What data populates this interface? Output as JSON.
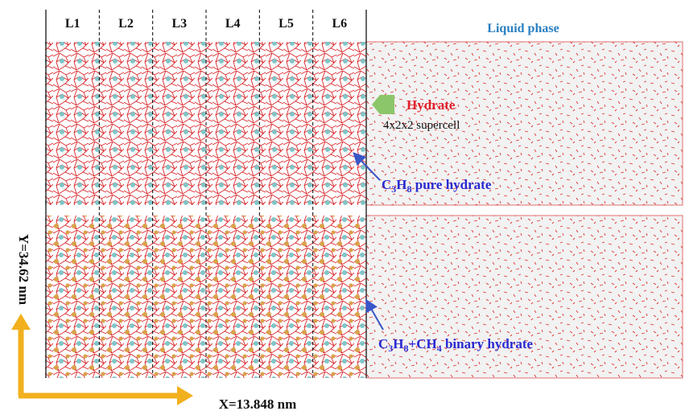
{
  "layers": [
    "L1",
    "L2",
    "L3",
    "L4",
    "L5",
    "L6"
  ],
  "liquid_label": "Liquid phase",
  "hydrate_label": "Hydrate",
  "supercell_label": "4x2x2 supercell",
  "pure_label": [
    {
      "text": "C"
    },
    {
      "text": "3",
      "sub": true
    },
    {
      "text": "H"
    },
    {
      "text": "8",
      "sub": true
    },
    {
      "text": " pure hydrate"
    }
  ],
  "binary_label": [
    {
      "text": "C"
    },
    {
      "text": "3",
      "sub": true
    },
    {
      "text": "H"
    },
    {
      "text": "8",
      "sub": true
    },
    {
      "text": "+CH"
    },
    {
      "text": "4",
      "sub": true
    },
    {
      "text": " binary hydrate"
    }
  ],
  "y_axis_label": "Y=34.62 nm",
  "x_axis_label": "X=13.848 nm"
}
